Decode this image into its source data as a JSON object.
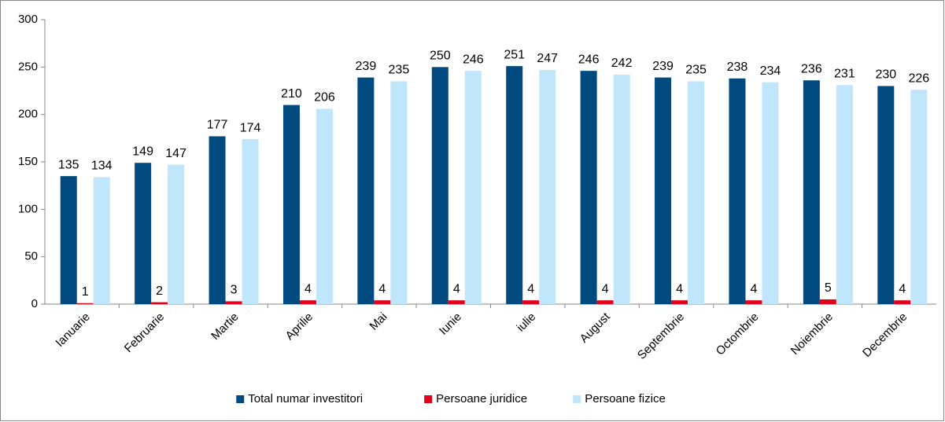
{
  "chart_data": {
    "type": "bar",
    "categories": [
      "Ianuarie",
      "Februarie",
      "Martie",
      "Aprilie",
      "Mai",
      "Iunie",
      "iulie",
      "August",
      "Septembrie",
      "Octombrie",
      "Noiembrie",
      "Decembrie"
    ],
    "series": [
      {
        "name": "Total numar investitori",
        "color": "#004a7f",
        "values": [
          135,
          149,
          177,
          210,
          239,
          250,
          251,
          246,
          239,
          238,
          236,
          230
        ]
      },
      {
        "name": "Persoane juridice",
        "color": "#e3001b",
        "values": [
          1,
          2,
          3,
          4,
          4,
          4,
          4,
          4,
          4,
          4,
          5,
          4
        ]
      },
      {
        "name": "Persoane fizice",
        "color": "#bfe6fb",
        "values": [
          134,
          147,
          174,
          206,
          235,
          246,
          247,
          242,
          235,
          234,
          231,
          226
        ]
      }
    ],
    "ylim": [
      0,
      300
    ],
    "yticks": [
      0,
      50,
      100,
      150,
      200,
      250,
      300
    ],
    "grid": false,
    "legend": "bottom"
  }
}
